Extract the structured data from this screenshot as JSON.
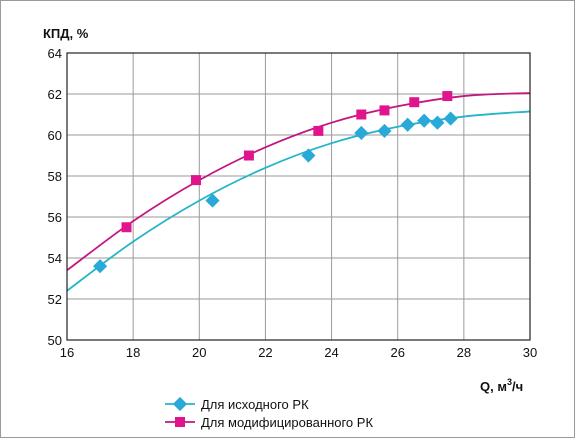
{
  "chart_data": {
    "type": "scatter",
    "ylabel": "КПД, %",
    "xlabel_main": "Q, м",
    "xlabel_sup": "3",
    "xlabel_tail": "/ч",
    "xlim": [
      16,
      30
    ],
    "ylim": [
      50,
      64
    ],
    "xticks": [
      "16",
      "18",
      "20",
      "22",
      "24",
      "26",
      "28",
      "30"
    ],
    "yticks": [
      "50",
      "52",
      "54",
      "56",
      "58",
      "60",
      "62",
      "64"
    ],
    "xtick_values": [
      16,
      18,
      20,
      22,
      24,
      26,
      28,
      30
    ],
    "ytick_values": [
      50,
      52,
      54,
      56,
      58,
      60,
      62,
      64
    ],
    "grid": true,
    "legend_position": "bottom",
    "series": [
      {
        "name": "Для исходного РК",
        "color": "#29a9d8",
        "line_color": "#23b5c8",
        "marker": "diamond",
        "points": [
          [
            17.0,
            53.6
          ],
          [
            20.4,
            56.8
          ],
          [
            23.3,
            59.0
          ],
          [
            24.9,
            60.1
          ],
          [
            25.6,
            60.2
          ],
          [
            26.3,
            60.5
          ],
          [
            26.8,
            60.7
          ],
          [
            27.2,
            60.6
          ],
          [
            27.6,
            60.8
          ]
        ],
        "curve": [
          [
            16,
            52.4
          ],
          [
            18,
            54.8
          ],
          [
            20,
            56.8
          ],
          [
            22,
            58.4
          ],
          [
            24,
            59.6
          ],
          [
            26,
            60.4
          ],
          [
            28,
            60.9
          ],
          [
            30,
            61.15
          ]
        ]
      },
      {
        "name": "Для модифицированного РК",
        "color": "#e0148c",
        "line_color": "#c41680",
        "marker": "square",
        "points": [
          [
            17.8,
            55.5
          ],
          [
            19.9,
            57.8
          ],
          [
            21.5,
            59.0
          ],
          [
            23.6,
            60.2
          ],
          [
            24.9,
            61.0
          ],
          [
            25.6,
            61.2
          ],
          [
            26.5,
            61.6
          ],
          [
            27.5,
            61.9
          ]
        ],
        "curve": [
          [
            16,
            53.4
          ],
          [
            18,
            55.8
          ],
          [
            20,
            57.8
          ],
          [
            22,
            59.4
          ],
          [
            24,
            60.6
          ],
          [
            26,
            61.4
          ],
          [
            28,
            61.9
          ],
          [
            30,
            62.05
          ]
        ]
      }
    ]
  }
}
